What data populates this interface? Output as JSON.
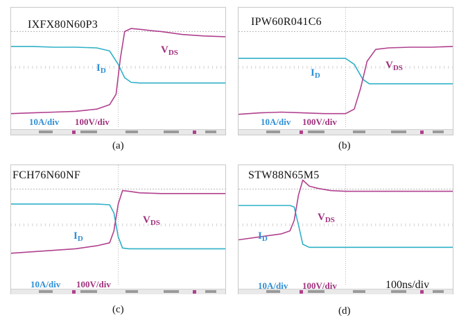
{
  "colors": {
    "id_trace": "#2fb0c8",
    "vds_trace": "#b0408e",
    "grid": "#b5b5b5"
  },
  "common": {
    "id_label": "I",
    "id_sub": "D",
    "vds_label": "V",
    "vds_sub": "DS",
    "time_scale": "100ns/div"
  },
  "chart_data": [
    {
      "type": "line",
      "caption": "(a)",
      "title": "IXFX80N60P3",
      "current_scale": "10A/div",
      "voltage_scale": "100V/div",
      "x_divisions": 10,
      "y_divisions": 8,
      "grid_dashed": true,
      "series": [
        {
          "name": "ID",
          "x": [
            0,
            1,
            2,
            3,
            4,
            4.6,
            5,
            5.3,
            5.6,
            6,
            7,
            8,
            9,
            10
          ],
          "y": [
            5.4,
            5.4,
            5.35,
            5.35,
            5.3,
            5.1,
            4.2,
            3.3,
            3.0,
            2.95,
            2.95,
            2.95,
            2.95,
            2.95
          ]
        },
        {
          "name": "VDS",
          "x": [
            0,
            1,
            2,
            3,
            4,
            4.6,
            4.9,
            5.1,
            5.3,
            5.6,
            6,
            6.6,
            7,
            8,
            9,
            10
          ],
          "y": [
            0.9,
            0.95,
            1.0,
            1.05,
            1.2,
            1.5,
            2.2,
            4.6,
            6.4,
            6.6,
            6.55,
            6.45,
            6.4,
            6.2,
            6.1,
            6.05
          ]
        }
      ]
    },
    {
      "type": "line",
      "caption": "(b)",
      "title": "IPW60R041C6",
      "current_scale": "10A/div",
      "voltage_scale": "100V/div",
      "x_divisions": 10,
      "y_divisions": 8,
      "grid_dashed": true,
      "series": [
        {
          "name": "ID",
          "x": [
            0,
            1,
            2,
            3,
            4,
            5,
            5.4,
            5.8,
            6.1,
            6.5,
            7,
            8,
            9,
            10
          ],
          "y": [
            4.6,
            4.6,
            4.6,
            4.6,
            4.6,
            4.6,
            4.2,
            3.2,
            2.9,
            2.9,
            2.9,
            2.9,
            2.9,
            2.9
          ]
        },
        {
          "name": "VDS",
          "x": [
            0,
            1,
            2,
            3,
            4,
            5,
            5.4,
            5.7,
            6,
            6.4,
            7,
            8,
            9,
            10
          ],
          "y": [
            0.85,
            0.95,
            1.0,
            0.95,
            0.9,
            0.9,
            1.2,
            2.6,
            4.4,
            5.2,
            5.3,
            5.35,
            5.35,
            5.4
          ]
        }
      ]
    },
    {
      "type": "line",
      "caption": "(c)",
      "title": "FCH76N60NF",
      "current_scale": "10A/div",
      "voltage_scale": "100V/div",
      "x_divisions": 10,
      "y_divisions": 8,
      "grid_dashed": true,
      "series": [
        {
          "name": "ID",
          "x": [
            0,
            1,
            2,
            3,
            4,
            4.6,
            4.8,
            5.0,
            5.2,
            5.5,
            6,
            7,
            8,
            9,
            10
          ],
          "y": [
            5.4,
            5.4,
            5.4,
            5.4,
            5.4,
            5.35,
            4.8,
            3.2,
            2.45,
            2.4,
            2.4,
            2.4,
            2.4,
            2.4,
            2.4
          ]
        },
        {
          "name": "VDS",
          "x": [
            0,
            1,
            2,
            3,
            4,
            4.6,
            4.8,
            5.0,
            5.2,
            5.5,
            6,
            7,
            8,
            9,
            10
          ],
          "y": [
            2.1,
            2.2,
            2.3,
            2.4,
            2.6,
            2.8,
            3.6,
            5.4,
            6.3,
            6.25,
            6.15,
            6.1,
            6.1,
            6.1,
            6.1
          ]
        }
      ]
    },
    {
      "type": "line",
      "caption": "(d)",
      "title": "STW88N65M5",
      "current_scale": "10A/div",
      "voltage_scale": "100V/div",
      "x_divisions": 10,
      "y_divisions": 8,
      "grid_dashed": true,
      "series": [
        {
          "name": "ID",
          "x": [
            0,
            1,
            2,
            2.4,
            2.6,
            2.8,
            3.0,
            3.3,
            4,
            5,
            6,
            7,
            8,
            9,
            10
          ],
          "y": [
            5.3,
            5.3,
            5.3,
            5.3,
            5.2,
            4.0,
            2.7,
            2.5,
            2.5,
            2.5,
            2.5,
            2.5,
            2.5,
            2.5,
            2.5
          ]
        },
        {
          "name": "VDS",
          "x": [
            0,
            1,
            2,
            2.4,
            2.6,
            2.8,
            3.0,
            3.3,
            3.7,
            4.3,
            5,
            6,
            7,
            8,
            9,
            10
          ],
          "y": [
            3.0,
            3.2,
            3.4,
            3.6,
            4.3,
            6.0,
            7.0,
            6.6,
            6.45,
            6.3,
            6.25,
            6.25,
            6.25,
            6.25,
            6.25,
            6.25
          ]
        }
      ]
    }
  ]
}
